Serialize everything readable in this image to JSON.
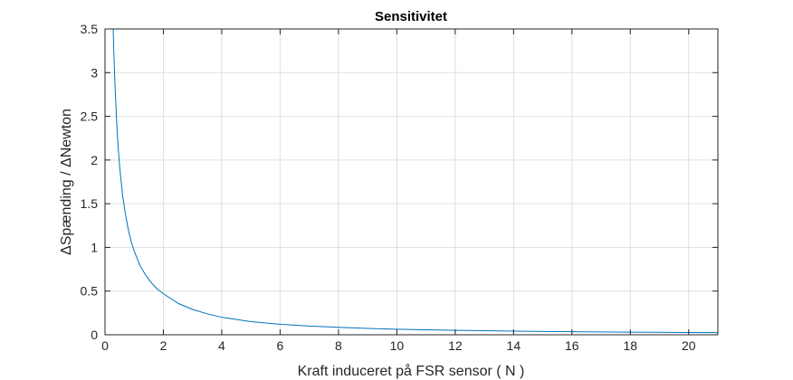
{
  "chart_data": {
    "type": "line",
    "title": "Sensitivitet",
    "xlabel": "Kraft induceret på FSR sensor ( N )",
    "ylabel": "ΔSpænding / ΔNewton",
    "xlim": [
      0,
      21
    ],
    "ylim": [
      0,
      3.5
    ],
    "xticks": [
      0,
      2,
      4,
      6,
      8,
      10,
      12,
      14,
      16,
      18,
      20
    ],
    "yticks": [
      0,
      0.5,
      1,
      1.5,
      2,
      2.5,
      3,
      3.5
    ],
    "xtick_labels": [
      "0",
      "2",
      "4",
      "6",
      "8",
      "10",
      "12",
      "14",
      "16",
      "18",
      "20"
    ],
    "ytick_labels": [
      "0",
      "0.5",
      "1",
      "1.5",
      "2",
      "2.5",
      "3",
      "3.5"
    ],
    "grid": true,
    "series": [
      {
        "color": "#0072bd",
        "x": [
          0.28,
          0.3,
          0.35,
          0.4,
          0.45,
          0.5,
          0.6,
          0.7,
          0.8,
          0.9,
          1.0,
          1.2,
          1.4,
          1.6,
          1.8,
          2.0,
          2.5,
          3.0,
          3.5,
          4.0,
          5.0,
          6.0,
          7.0,
          8.0,
          9.0,
          10.0,
          11.0,
          12.0,
          13.0,
          14.0,
          15.0,
          16.0,
          17.0,
          18.0,
          19.0,
          20.0,
          21.0
        ],
        "y": [
          3.5,
          3.25,
          2.8,
          2.43,
          2.15,
          1.93,
          1.6,
          1.38,
          1.2,
          1.06,
          0.96,
          0.79,
          0.68,
          0.59,
          0.52,
          0.47,
          0.36,
          0.29,
          0.24,
          0.2,
          0.15,
          0.12,
          0.1,
          0.085,
          0.073,
          0.064,
          0.057,
          0.051,
          0.046,
          0.042,
          0.038,
          0.035,
          0.032,
          0.03,
          0.028,
          0.026,
          0.024
        ]
      }
    ]
  }
}
